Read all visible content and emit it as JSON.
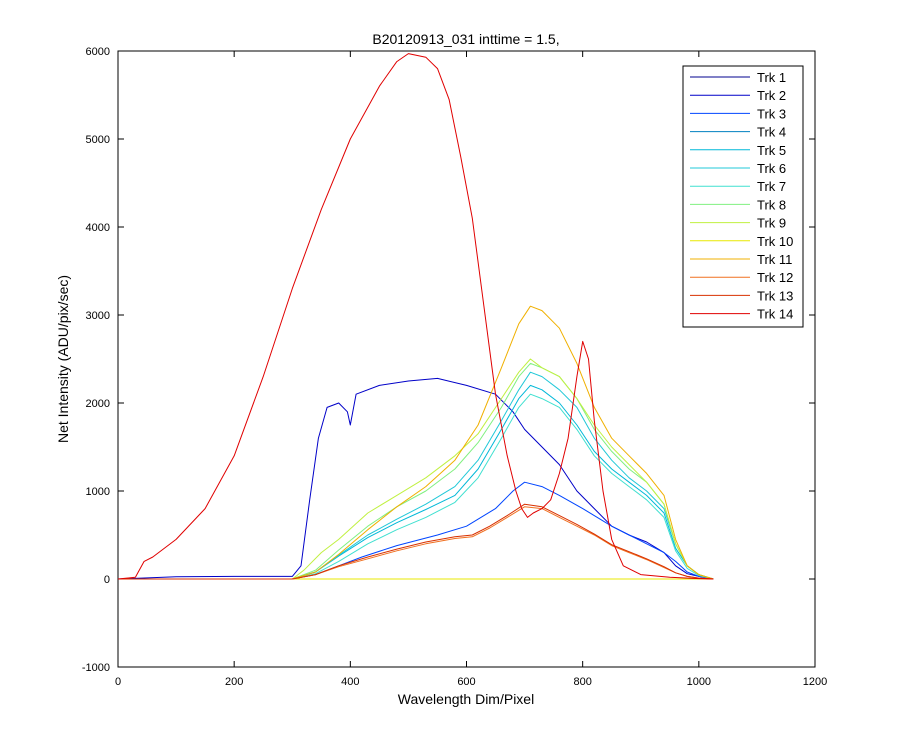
{
  "chart_data": {
    "type": "line",
    "title": "B20120913_031 inttime = 1.5,",
    "xlabel": "Wavelength Dim/Pixel",
    "ylabel": "Net Intensity (ADU/pix/sec)",
    "xlim": [
      0,
      1200
    ],
    "ylim": [
      -1000,
      6000
    ],
    "xticks": [
      0,
      200,
      400,
      600,
      800,
      1000,
      1200
    ],
    "yticks": [
      -1000,
      0,
      1000,
      2000,
      3000,
      4000,
      5000,
      6000
    ],
    "grid": false,
    "legend": "top-right",
    "series": [
      {
        "name": "Trk 1",
        "color": "#00008f",
        "points": [
          [
            0,
            0
          ],
          [
            1025,
            0
          ]
        ]
      },
      {
        "name": "Trk 2",
        "color": "#0000c8",
        "points": [
          [
            0,
            0
          ],
          [
            40,
            10
          ],
          [
            100,
            25
          ],
          [
            200,
            30
          ],
          [
            300,
            30
          ],
          [
            315,
            150
          ],
          [
            330,
            900
          ],
          [
            345,
            1600
          ],
          [
            360,
            1950
          ],
          [
            380,
            2000
          ],
          [
            395,
            1900
          ],
          [
            400,
            1750
          ],
          [
            410,
            2100
          ],
          [
            450,
            2200
          ],
          [
            500,
            2250
          ],
          [
            550,
            2280
          ],
          [
            600,
            2200
          ],
          [
            650,
            2100
          ],
          [
            680,
            1900
          ],
          [
            700,
            1700
          ],
          [
            730,
            1500
          ],
          [
            760,
            1300
          ],
          [
            790,
            1000
          ],
          [
            820,
            800
          ],
          [
            850,
            600
          ],
          [
            880,
            500
          ],
          [
            910,
            420
          ],
          [
            940,
            300
          ],
          [
            960,
            150
          ],
          [
            980,
            60
          ],
          [
            1000,
            30
          ],
          [
            1025,
            0
          ]
        ]
      },
      {
        "name": "Trk 3",
        "color": "#0045ff",
        "points": [
          [
            0,
            0
          ],
          [
            300,
            0
          ],
          [
            340,
            50
          ],
          [
            380,
            150
          ],
          [
            420,
            250
          ],
          [
            480,
            380
          ],
          [
            550,
            500
          ],
          [
            600,
            600
          ],
          [
            650,
            800
          ],
          [
            680,
            1000
          ],
          [
            700,
            1100
          ],
          [
            730,
            1050
          ],
          [
            760,
            950
          ],
          [
            800,
            800
          ],
          [
            850,
            600
          ],
          [
            880,
            500
          ],
          [
            910,
            400
          ],
          [
            940,
            300
          ],
          [
            960,
            200
          ],
          [
            980,
            80
          ],
          [
            1000,
            30
          ],
          [
            1025,
            0
          ]
        ]
      },
      {
        "name": "Trk 4",
        "color": "#0080c0",
        "points": [
          [
            0,
            0
          ],
          [
            1025,
            0
          ]
        ]
      },
      {
        "name": "Trk 5",
        "color": "#00b8d8",
        "points": [
          [
            0,
            0
          ],
          [
            300,
            0
          ],
          [
            340,
            80
          ],
          [
            380,
            260
          ],
          [
            430,
            470
          ],
          [
            480,
            640
          ],
          [
            530,
            790
          ],
          [
            580,
            950
          ],
          [
            620,
            1250
          ],
          [
            660,
            1700
          ],
          [
            690,
            2050
          ],
          [
            710,
            2200
          ],
          [
            730,
            2150
          ],
          [
            760,
            2000
          ],
          [
            790,
            1750
          ],
          [
            820,
            1450
          ],
          [
            850,
            1250
          ],
          [
            880,
            1100
          ],
          [
            910,
            950
          ],
          [
            940,
            750
          ],
          [
            960,
            350
          ],
          [
            980,
            150
          ],
          [
            1000,
            50
          ],
          [
            1025,
            0
          ]
        ]
      },
      {
        "name": "Trk 6",
        "color": "#20c8d8",
        "points": [
          [
            0,
            0
          ],
          [
            300,
            0
          ],
          [
            340,
            80
          ],
          [
            380,
            270
          ],
          [
            430,
            500
          ],
          [
            480,
            680
          ],
          [
            530,
            850
          ],
          [
            580,
            1050
          ],
          [
            620,
            1350
          ],
          [
            660,
            1800
          ],
          [
            690,
            2150
          ],
          [
            710,
            2350
          ],
          [
            730,
            2300
          ],
          [
            760,
            2150
          ],
          [
            790,
            1950
          ],
          [
            820,
            1600
          ],
          [
            850,
            1350
          ],
          [
            880,
            1150
          ],
          [
            910,
            1000
          ],
          [
            940,
            800
          ],
          [
            960,
            400
          ],
          [
            980,
            150
          ],
          [
            1000,
            50
          ],
          [
            1025,
            0
          ]
        ]
      },
      {
        "name": "Trk 7",
        "color": "#40e0d0",
        "points": [
          [
            0,
            0
          ],
          [
            300,
            0
          ],
          [
            340,
            60
          ],
          [
            380,
            200
          ],
          [
            430,
            400
          ],
          [
            480,
            560
          ],
          [
            530,
            700
          ],
          [
            580,
            870
          ],
          [
            620,
            1150
          ],
          [
            660,
            1600
          ],
          [
            690,
            1950
          ],
          [
            710,
            2100
          ],
          [
            730,
            2050
          ],
          [
            760,
            1950
          ],
          [
            790,
            1700
          ],
          [
            820,
            1400
          ],
          [
            850,
            1200
          ],
          [
            880,
            1050
          ],
          [
            910,
            900
          ],
          [
            940,
            700
          ],
          [
            960,
            320
          ],
          [
            980,
            120
          ],
          [
            1000,
            40
          ],
          [
            1025,
            0
          ]
        ]
      },
      {
        "name": "Trk 8",
        "color": "#80f080",
        "points": [
          [
            0,
            0
          ],
          [
            300,
            0
          ],
          [
            340,
            100
          ],
          [
            380,
            330
          ],
          [
            430,
            600
          ],
          [
            480,
            820
          ],
          [
            530,
            1000
          ],
          [
            580,
            1250
          ],
          [
            620,
            1550
          ],
          [
            660,
            1950
          ],
          [
            690,
            2300
          ],
          [
            710,
            2450
          ],
          [
            730,
            2400
          ],
          [
            760,
            2300
          ],
          [
            790,
            2050
          ],
          [
            820,
            1700
          ],
          [
            850,
            1450
          ],
          [
            880,
            1250
          ],
          [
            910,
            1100
          ],
          [
            940,
            850
          ],
          [
            960,
            400
          ],
          [
            980,
            150
          ],
          [
            1000,
            50
          ],
          [
            1025,
            0
          ]
        ]
      },
      {
        "name": "Trk 9",
        "color": "#c0f040",
        "points": [
          [
            0,
            0
          ],
          [
            300,
            0
          ],
          [
            320,
            100
          ],
          [
            350,
            300
          ],
          [
            380,
            450
          ],
          [
            430,
            750
          ],
          [
            480,
            950
          ],
          [
            530,
            1150
          ],
          [
            580,
            1400
          ],
          [
            620,
            1650
          ],
          [
            660,
            2050
          ],
          [
            690,
            2350
          ],
          [
            710,
            2500
          ],
          [
            730,
            2400
          ],
          [
            760,
            2300
          ],
          [
            790,
            2050
          ],
          [
            820,
            1750
          ],
          [
            850,
            1500
          ],
          [
            880,
            1300
          ],
          [
            910,
            1100
          ],
          [
            940,
            850
          ],
          [
            960,
            400
          ],
          [
            980,
            150
          ],
          [
            1000,
            50
          ],
          [
            1025,
            0
          ]
        ]
      },
      {
        "name": "Trk 10",
        "color": "#e8e800",
        "points": [
          [
            0,
            0
          ],
          [
            1025,
            0
          ]
        ]
      },
      {
        "name": "Trk 11",
        "color": "#f0b000",
        "points": [
          [
            0,
            0
          ],
          [
            300,
            0
          ],
          [
            340,
            80
          ],
          [
            380,
            280
          ],
          [
            430,
            560
          ],
          [
            480,
            820
          ],
          [
            530,
            1050
          ],
          [
            580,
            1350
          ],
          [
            620,
            1750
          ],
          [
            660,
            2400
          ],
          [
            690,
            2900
          ],
          [
            710,
            3100
          ],
          [
            730,
            3050
          ],
          [
            760,
            2850
          ],
          [
            790,
            2450
          ],
          [
            820,
            1950
          ],
          [
            850,
            1600
          ],
          [
            880,
            1400
          ],
          [
            910,
            1200
          ],
          [
            940,
            950
          ],
          [
            960,
            450
          ],
          [
            980,
            150
          ],
          [
            1000,
            50
          ],
          [
            1025,
            0
          ]
        ]
      },
      {
        "name": "Trk 12",
        "color": "#f07020",
        "points": [
          [
            0,
            0
          ],
          [
            300,
            0
          ],
          [
            340,
            50
          ],
          [
            380,
            140
          ],
          [
            430,
            230
          ],
          [
            480,
            320
          ],
          [
            530,
            400
          ],
          [
            580,
            460
          ],
          [
            610,
            480
          ],
          [
            640,
            580
          ],
          [
            670,
            700
          ],
          [
            700,
            820
          ],
          [
            730,
            800
          ],
          [
            760,
            700
          ],
          [
            790,
            600
          ],
          [
            820,
            500
          ],
          [
            850,
            380
          ],
          [
            880,
            300
          ],
          [
            910,
            220
          ],
          [
            940,
            130
          ],
          [
            960,
            70
          ],
          [
            980,
            30
          ],
          [
            1000,
            10
          ],
          [
            1025,
            0
          ]
        ]
      },
      {
        "name": "Trk 13",
        "color": "#d83000",
        "points": [
          [
            0,
            0
          ],
          [
            300,
            0
          ],
          [
            340,
            50
          ],
          [
            380,
            150
          ],
          [
            430,
            250
          ],
          [
            480,
            340
          ],
          [
            530,
            420
          ],
          [
            580,
            480
          ],
          [
            610,
            500
          ],
          [
            640,
            600
          ],
          [
            670,
            720
          ],
          [
            700,
            850
          ],
          [
            730,
            820
          ],
          [
            760,
            720
          ],
          [
            790,
            620
          ],
          [
            820,
            510
          ],
          [
            850,
            390
          ],
          [
            880,
            310
          ],
          [
            910,
            230
          ],
          [
            940,
            140
          ],
          [
            960,
            70
          ],
          [
            980,
            30
          ],
          [
            1000,
            10
          ],
          [
            1025,
            0
          ]
        ]
      },
      {
        "name": "Trk 14",
        "color": "#e00000",
        "points": [
          [
            0,
            0
          ],
          [
            30,
            20
          ],
          [
            45,
            200
          ],
          [
            60,
            250
          ],
          [
            100,
            450
          ],
          [
            150,
            800
          ],
          [
            200,
            1400
          ],
          [
            250,
            2300
          ],
          [
            300,
            3300
          ],
          [
            350,
            4200
          ],
          [
            400,
            5000
          ],
          [
            450,
            5600
          ],
          [
            480,
            5880
          ],
          [
            500,
            5970
          ],
          [
            530,
            5930
          ],
          [
            550,
            5800
          ],
          [
            570,
            5450
          ],
          [
            590,
            4800
          ],
          [
            610,
            4100
          ],
          [
            630,
            3100
          ],
          [
            650,
            2100
          ],
          [
            670,
            1400
          ],
          [
            685,
            1000
          ],
          [
            695,
            800
          ],
          [
            705,
            700
          ],
          [
            715,
            750
          ],
          [
            730,
            800
          ],
          [
            745,
            900
          ],
          [
            760,
            1200
          ],
          [
            775,
            1600
          ],
          [
            790,
            2300
          ],
          [
            800,
            2700
          ],
          [
            810,
            2500
          ],
          [
            820,
            1800
          ],
          [
            835,
            1000
          ],
          [
            850,
            450
          ],
          [
            870,
            150
          ],
          [
            900,
            50
          ],
          [
            950,
            20
          ],
          [
            1000,
            5
          ],
          [
            1025,
            0
          ]
        ]
      }
    ]
  }
}
